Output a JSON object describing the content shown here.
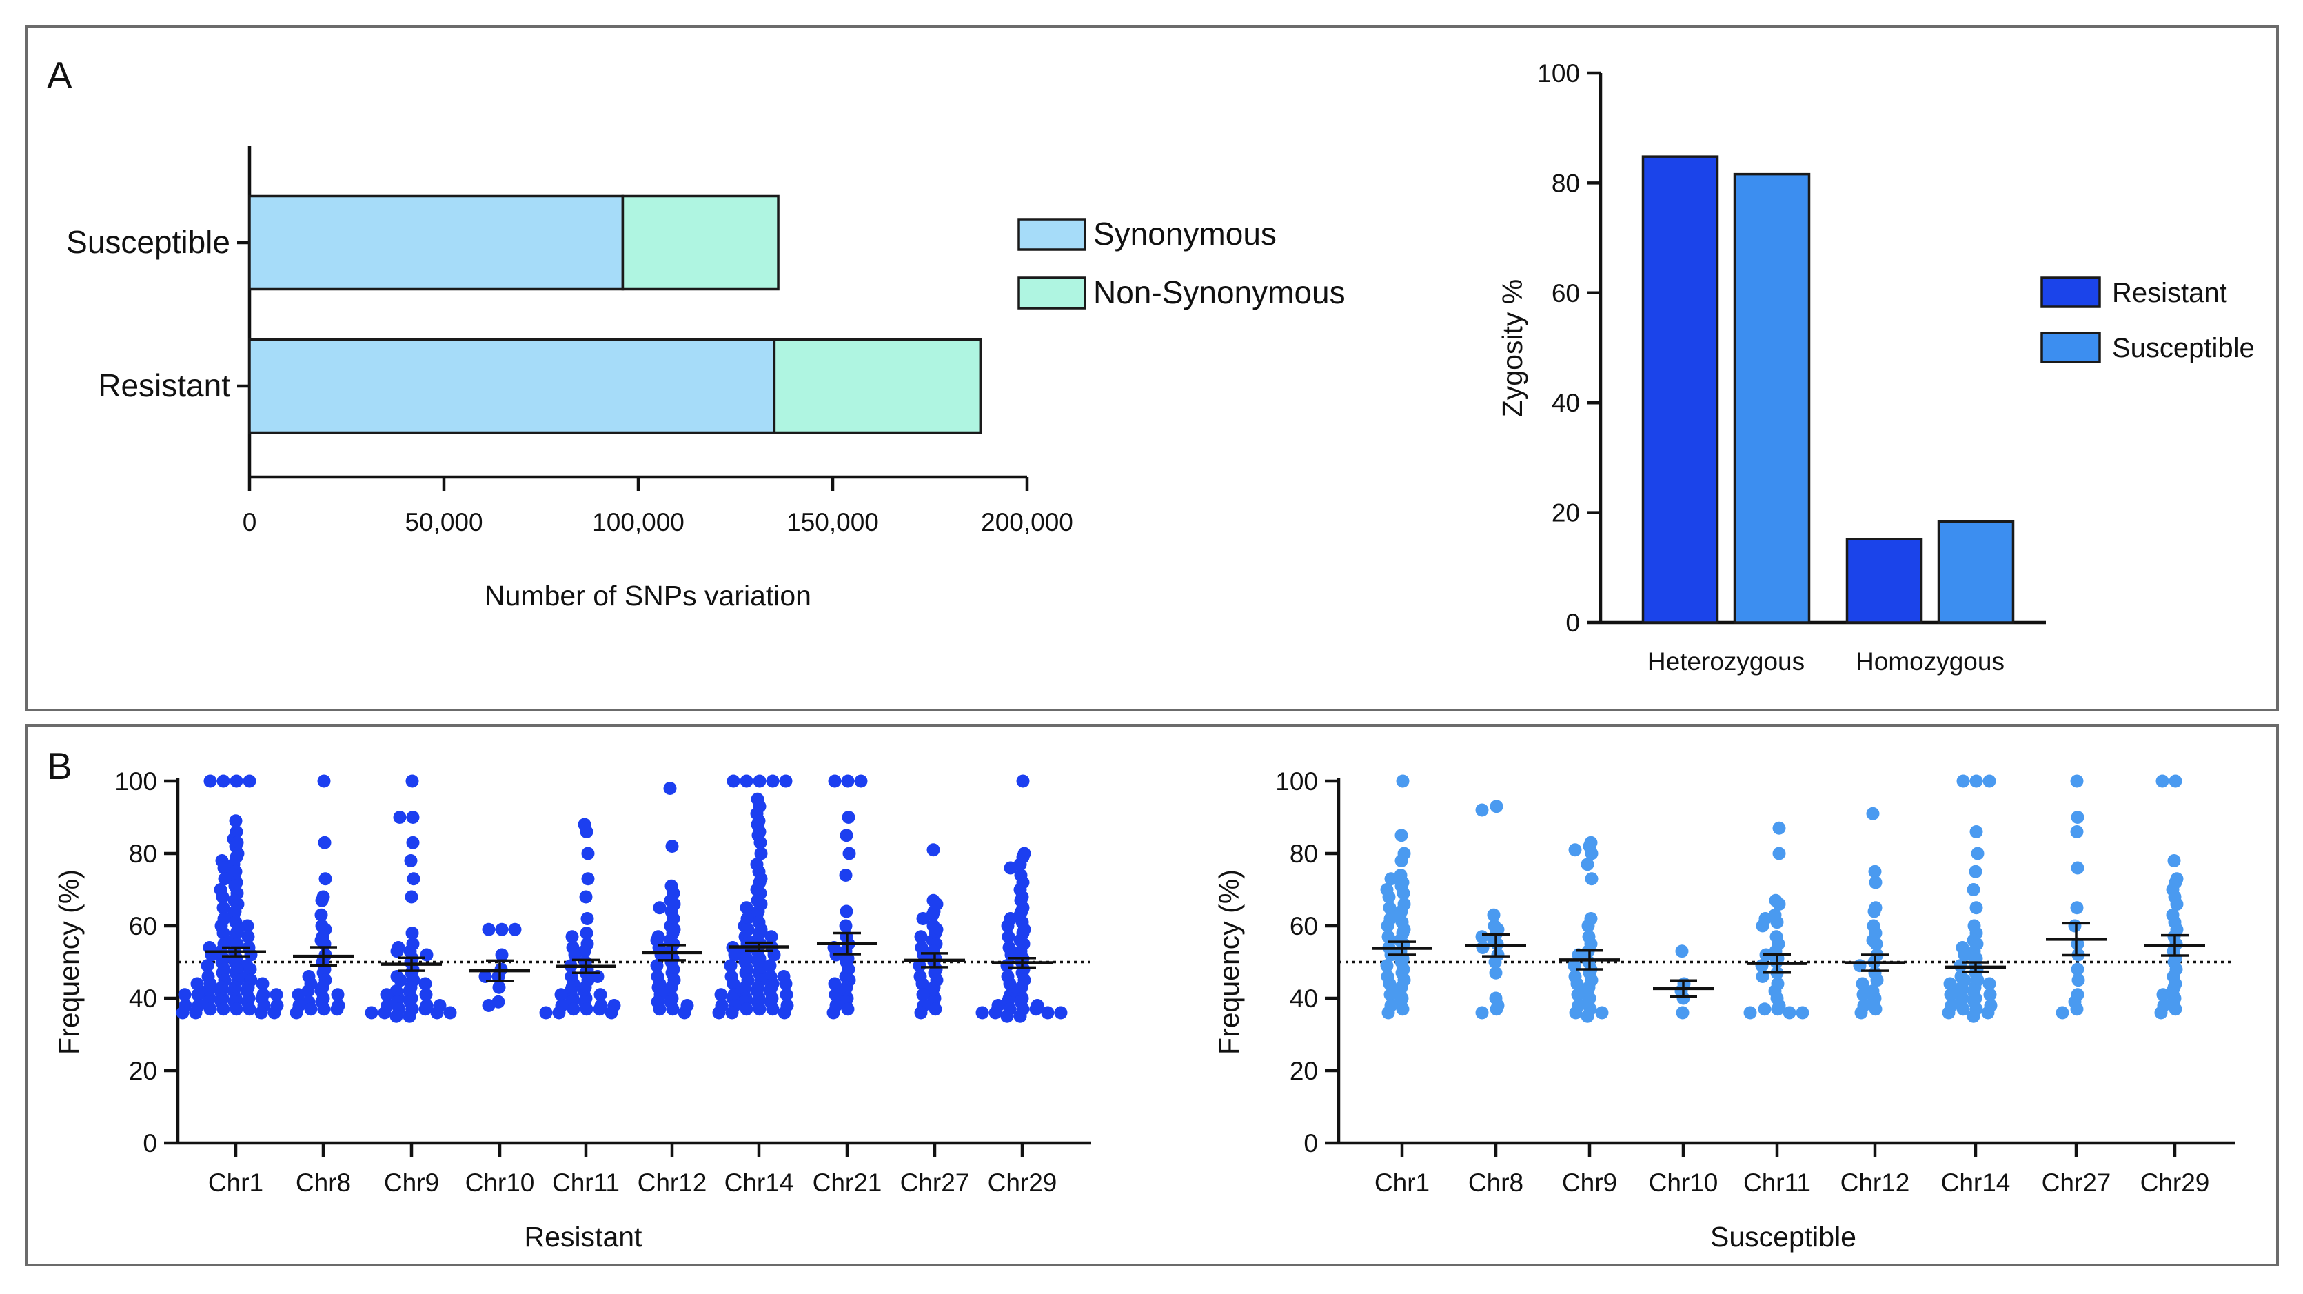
{
  "panel_a_label": "A",
  "panel_b_label": "B",
  "chart_data": [
    {
      "type": "bar",
      "orientation": "horizontal",
      "stacked": true,
      "categories": [
        "Susceptible",
        "Resistant"
      ],
      "series": [
        {
          "name": "Synonymous",
          "values": [
            96000,
            135000
          ],
          "color": "#a6dcf9"
        },
        {
          "name": "Non-Synonymous",
          "values": [
            40000,
            53000
          ],
          "color": "#aff5e1"
        }
      ],
      "xlabel": "Number of SNPs variation",
      "xlim": [
        0,
        200000
      ],
      "xticks": [
        0,
        50000,
        100000,
        150000,
        200000
      ],
      "xtick_labels": [
        "0",
        "50,000",
        "100,000",
        "150,000",
        "200,000"
      ],
      "legend_position": "right"
    },
    {
      "type": "bar",
      "categories": [
        "Heterozygous",
        "Homozygous"
      ],
      "series": [
        {
          "name": "Resistant",
          "values": [
            84.8,
            15.2
          ],
          "color": "#1b44ea"
        },
        {
          "name": "Susceptible",
          "values": [
            81.6,
            18.4
          ],
          "color": "#3c8ef0"
        }
      ],
      "ylabel": "Zygosity %",
      "ylim": [
        0,
        100
      ],
      "yticks": [
        0,
        20,
        40,
        60,
        80,
        100
      ],
      "ytick_labels": [
        "0",
        "20",
        "40",
        "60",
        "80",
        "100"
      ],
      "legend_position": "right"
    },
    {
      "type": "scatter",
      "title": "Resistant",
      "color": "#1c3ff0",
      "ylabel": "Frequency (%)",
      "ylim": [
        0,
        100
      ],
      "yticks": [
        0,
        20,
        40,
        60,
        80,
        100
      ],
      "ytick_labels": [
        "0",
        "20",
        "40",
        "60",
        "80",
        "100"
      ],
      "reference_line": 50,
      "categories": [
        "Chr1",
        "Chr8",
        "Chr9",
        "Chr10",
        "Chr11",
        "Chr12",
        "Chr14",
        "Chr21",
        "Chr27",
        "Chr29"
      ],
      "mean": [
        52.8,
        51.6,
        49.4,
        47.6,
        48.8,
        52.6,
        54.2,
        55.1,
        50.5,
        49.8
      ],
      "sem": [
        1.2,
        2.5,
        1.8,
        2.8,
        1.8,
        2.1,
        1.1,
        2.9,
        1.9,
        1.3
      ],
      "points": [
        [
          100,
          100,
          100,
          100,
          89,
          86,
          84,
          83,
          82,
          80,
          79,
          78,
          77,
          76,
          75,
          74,
          73,
          72,
          71,
          70,
          69,
          68,
          67,
          66,
          65,
          64,
          63,
          62,
          61,
          60,
          60,
          59,
          58,
          58,
          57,
          56,
          55,
          55,
          54,
          54,
          53,
          53,
          52,
          52,
          51,
          51,
          50,
          50,
          49,
          49,
          48,
          48,
          48,
          47,
          47,
          46,
          46,
          45,
          45,
          45,
          44,
          44,
          44,
          43,
          43,
          43,
          42,
          42,
          42,
          42,
          41,
          41,
          41,
          41,
          40,
          40,
          40,
          40,
          40,
          39,
          39,
          39,
          39,
          38,
          38,
          38,
          38,
          37,
          37,
          37,
          37,
          36,
          36,
          36,
          36
        ],
        [
          100,
          83,
          73,
          68,
          67,
          63,
          60,
          59,
          57,
          56,
          55,
          52,
          50,
          48,
          47,
          46,
          45,
          44,
          43,
          42,
          42,
          41,
          41,
          40,
          39,
          39,
          38,
          38,
          37,
          37,
          37,
          36
        ],
        [
          100,
          90,
          90,
          83,
          78,
          73,
          68,
          58,
          55,
          54,
          53,
          53,
          52,
          51,
          50,
          48,
          47,
          46,
          45,
          45,
          44,
          43,
          42,
          42,
          41,
          41,
          40,
          40,
          39,
          39,
          38,
          38,
          38,
          37,
          37,
          37,
          36,
          36,
          36,
          36,
          35,
          35
        ],
        [
          59,
          59,
          59,
          52,
          48,
          46,
          46,
          43,
          39,
          38
        ],
        [
          88,
          86,
          80,
          73,
          68,
          62,
          58,
          57,
          55,
          54,
          53,
          52,
          50,
          49,
          48,
          47,
          46,
          46,
          45,
          44,
          43,
          43,
          42,
          42,
          41,
          41,
          40,
          40,
          39,
          39,
          38,
          38,
          38,
          37,
          37,
          37,
          36,
          36,
          36
        ],
        [
          98,
          82,
          71,
          69,
          67,
          66,
          65,
          64,
          62,
          60,
          59,
          58,
          57,
          56,
          56,
          55,
          54,
          53,
          52,
          51,
          50,
          49,
          48,
          47,
          46,
          45,
          44,
          43,
          43,
          42,
          41,
          40,
          39,
          39,
          38,
          37,
          37,
          36
        ],
        [
          100,
          100,
          100,
          100,
          100,
          95,
          93,
          91,
          89,
          88,
          86,
          85,
          83,
          80,
          77,
          75,
          73,
          72,
          70,
          69,
          67,
          66,
          65,
          64,
          63,
          62,
          61,
          60,
          59,
          59,
          58,
          57,
          57,
          56,
          55,
          55,
          54,
          54,
          53,
          53,
          52,
          52,
          51,
          51,
          50,
          50,
          49,
          49,
          48,
          48,
          47,
          47,
          46,
          46,
          46,
          45,
          45,
          44,
          44,
          44,
          43,
          43,
          43,
          42,
          42,
          42,
          41,
          41,
          41,
          40,
          40,
          40,
          40,
          39,
          39,
          39,
          38,
          38,
          38,
          37,
          37,
          37,
          36,
          36,
          36
        ],
        [
          100,
          100,
          100,
          90,
          85,
          80,
          74,
          64,
          60,
          57,
          55,
          54,
          53,
          52,
          51,
          50,
          48,
          46,
          45,
          44,
          43,
          42,
          41,
          40,
          39,
          38,
          37,
          36
        ],
        [
          81,
          67,
          66,
          64,
          63,
          62,
          60,
          59,
          58,
          57,
          56,
          55,
          54,
          53,
          52,
          51,
          50,
          49,
          48,
          47,
          46,
          45,
          44,
          43,
          42,
          41,
          40,
          39,
          38,
          37,
          36
        ],
        [
          100,
          80,
          79,
          77,
          76,
          74,
          72,
          70,
          68,
          67,
          65,
          64,
          63,
          62,
          61,
          60,
          59,
          58,
          57,
          56,
          55,
          54,
          53,
          52,
          51,
          50,
          49,
          48,
          47,
          46,
          45,
          44,
          43,
          42,
          41,
          40,
          40,
          39,
          39,
          38,
          38,
          37,
          37,
          37,
          36,
          36,
          36,
          36,
          35,
          35
        ]
      ],
      "xlabel": "Resistant"
    },
    {
      "type": "scatter",
      "title": "Susceptible",
      "color": "#4a9af0",
      "ylabel": "Frequency (%)",
      "ylim": [
        0,
        100
      ],
      "yticks": [
        0,
        20,
        40,
        60,
        80,
        100
      ],
      "ytick_labels": [
        "0",
        "20",
        "40",
        "60",
        "80",
        "100"
      ],
      "reference_line": 50,
      "categories": [
        "Chr1",
        "Chr8",
        "Chr9",
        "Chr10",
        "Chr11",
        "Chr12",
        "Chr14",
        "Chr27",
        "Chr29"
      ],
      "mean": [
        53.8,
        54.6,
        50.6,
        42.7,
        49.6,
        49.8,
        48.6,
        56.3,
        54.6
      ],
      "sem": [
        1.8,
        3.0,
        2.6,
        2.2,
        2.5,
        2.2,
        1.3,
        4.4,
        2.8
      ],
      "points": [
        [
          100,
          85,
          80,
          78,
          74,
          73,
          72,
          71,
          70,
          69,
          68,
          66,
          65,
          64,
          63,
          62,
          61,
          60,
          59,
          58,
          57,
          56,
          55,
          54,
          53,
          52,
          51,
          50,
          49,
          48,
          47,
          46,
          45,
          44,
          43,
          42,
          41,
          40,
          39,
          38,
          37,
          36
        ],
        [
          93,
          92,
          63,
          60,
          59,
          58,
          57,
          56,
          55,
          54,
          52,
          50,
          47,
          40,
          38,
          37,
          36
        ],
        [
          83,
          82,
          81,
          80,
          77,
          73,
          62,
          60,
          57,
          55,
          53,
          52,
          50,
          49,
          48,
          47,
          46,
          45,
          44,
          43,
          42,
          41,
          40,
          39,
          38,
          37,
          36,
          36,
          35
        ],
        [
          53,
          44,
          42,
          40,
          36
        ],
        [
          87,
          80,
          67,
          66,
          63,
          62,
          61,
          60,
          57,
          55,
          53,
          52,
          51,
          50,
          49,
          47,
          46,
          44,
          42,
          40,
          38,
          37,
          37,
          36,
          36,
          36
        ],
        [
          91,
          75,
          72,
          65,
          64,
          60,
          58,
          56,
          55,
          52,
          50,
          49,
          47,
          45,
          44,
          42,
          41,
          40,
          39,
          38,
          37,
          36
        ],
        [
          100,
          100,
          100,
          86,
          80,
          75,
          70,
          65,
          60,
          58,
          56,
          55,
          54,
          53,
          52,
          51,
          50,
          49,
          48,
          47,
          46,
          45,
          45,
          44,
          44,
          43,
          43,
          42,
          42,
          41,
          41,
          40,
          40,
          39,
          39,
          38,
          38,
          37,
          37,
          36,
          36,
          35
        ],
        [
          100,
          90,
          86,
          76,
          65,
          60,
          55,
          52,
          48,
          45,
          41,
          39,
          37,
          36
        ],
        [
          100,
          100,
          78,
          73,
          72,
          70,
          68,
          66,
          63,
          61,
          59,
          57,
          55,
          53,
          51,
          50,
          48,
          46,
          44,
          43,
          42,
          41,
          40,
          39,
          38,
          37,
          36
        ]
      ],
      "xlabel": "Susceptible"
    }
  ]
}
